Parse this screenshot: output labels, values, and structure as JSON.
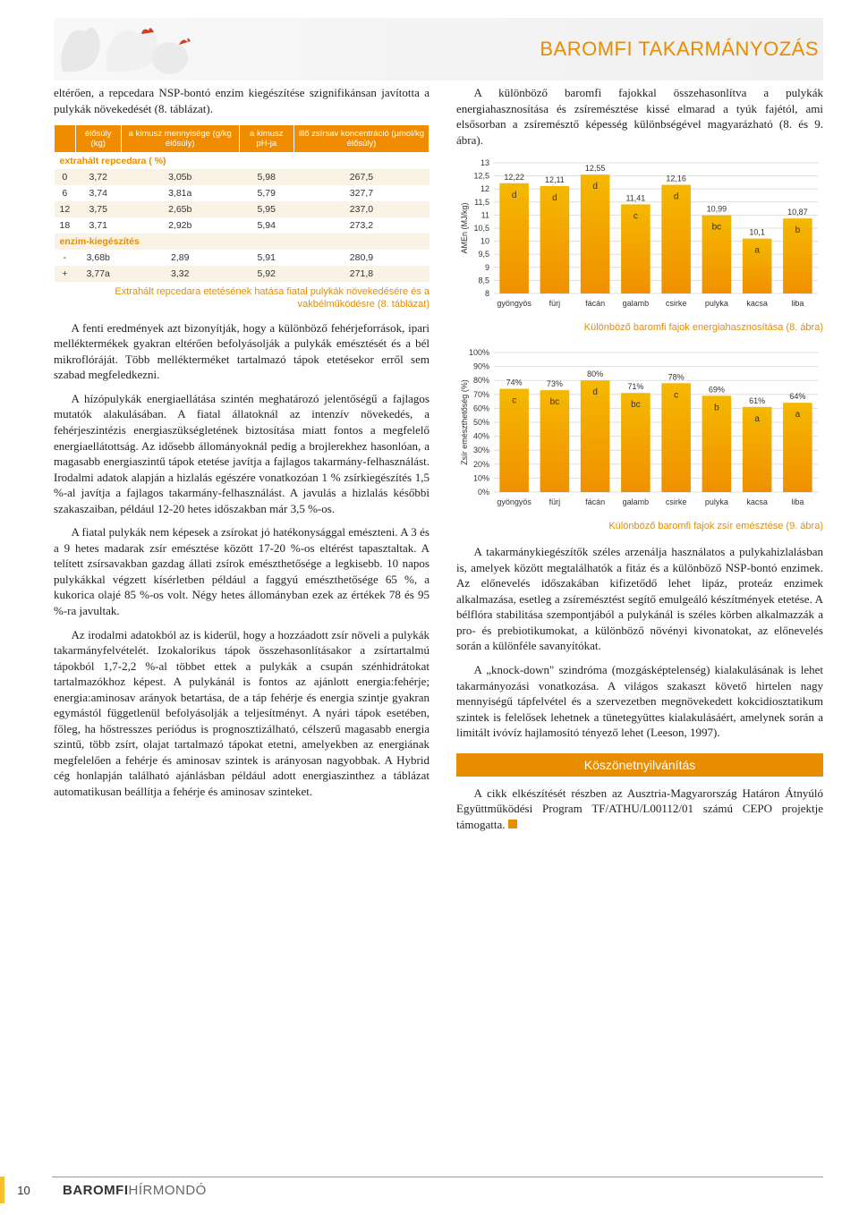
{
  "header": {
    "title": "BAROMFI TAKARMÁNYOZÁS"
  },
  "left": {
    "intro": "eltérően, a repcedara NSP-bontó enzim kiegészítése szignifikánsan javította a pulykák növekedését (8. táblázat).",
    "table": {
      "headers": [
        "",
        "élősúly (kg)",
        "a kimusz mennyisége (g/kg élősúly)",
        "a kimusz pH-ja",
        "illő zsírsav koncentráció (µmol/kg élősúly)"
      ],
      "section1": "extrahált repcedara ( %)",
      "rows1": [
        [
          "0",
          "3,72",
          "3,05b",
          "5,98",
          "267,5"
        ],
        [
          "6",
          "3,74",
          "3,81a",
          "5,79",
          "327,7"
        ],
        [
          "12",
          "3,75",
          "2,65b",
          "5,95",
          "237,0"
        ],
        [
          "18",
          "3,71",
          "2,92b",
          "5,94",
          "273,2"
        ]
      ],
      "section2": "enzim-kiegészítés",
      "rows2": [
        [
          "-",
          "3,68b",
          "2,89",
          "5,91",
          "280,9"
        ],
        [
          "+",
          "3,77a",
          "3,32",
          "5,92",
          "271,8"
        ]
      ],
      "caption": "Extrahált repcedara etetésének hatása fiatal pulykák növekedésére és a vakbélműködésre (8. táblázat)"
    },
    "para1": "A fenti eredmények azt bizonyítják, hogy a különböző fehérjeforrások, ipari melléktermékek gyakran eltérően befolyásolják a pulykák emésztését és a bél mikroflóráját. Több mellékterméket tartalmazó tápok etetésekor erről sem szabad megfeledkezni.",
    "para2": "A hízópulykák energiaellátása szintén meghatározó jelentőségű a fajlagos mutatók alakulásában. A fiatal állatoknál az intenzív növekedés, a fehérjeszintézis energiaszükségletének biztosítása miatt fontos a megfelelő energiaellátottság. Az idősebb állományoknál pedig a brojlerekhez hasonlóan, a magasabb energiaszintű tápok etetése javítja a fajlagos takarmány-felhasználást. Irodalmi adatok alapján a hizlalás egészére vonatkozóan 1 % zsírkiegészítés 1,5 %-al javítja a fajlagos takarmány-felhasználást. A javulás a hizlalás későbbi szakaszaiban, például 12-20 hetes időszakban már 3,5 %-os.",
    "para3": "A fiatal pulykák nem képesek a zsírokat jó hatékonysággal emészteni. A 3 és a 9 hetes madarak zsír emésztése között 17-20 %-os eltérést tapasztaltak. A telített zsírsavakban gazdag állati zsírok emészthetősége a legkisebb. 10 napos pulykákkal végzett kísérletben például a faggyú emészthetősége 65 %, a kukorica olajé 85 %-os volt. Négy hetes állományban ezek az értékek 78 és 95 %-ra javultak.",
    "para4": "Az irodalmi adatokból az is kiderül, hogy a hozzáadott zsír növeli a pulykák takarmányfelvételét. Izokalorikus tápok összehasonlításakor a zsírtartalmú tápokból 1,7-2,2 %-al többet ettek a pulykák a csupán szénhidrátokat tartalmazókhoz képest. A pulykánál is fontos az ajánlott energia:fehérje; energia:aminosav arányok betartása, de a táp fehérje és energia szintje gyakran egymástól függetlenül befolyásolják a teljesítményt. A nyári tápok esetében, főleg, ha hőstresszes periódus is prognosztizálható, célszerű magasabb energia szintű, több zsírt, olajat tartalmazó tápokat etetni, amelyekben az energiának megfelelően a fehérje és aminosav szintek is arányosan nagyobbak. A Hybrid cég honlapján található ajánlásban például adott energiaszinthez a táblázat automatikusan beállítja a fehérje és aminosav szinteket."
  },
  "right": {
    "intro": "A különböző baromfi fajokkal összehasonlítva a pulykák energiahasznosítása és zsíremésztése kissé elmarad a tyúk fajétól, ami elsősorban a zsíremésztő képesség különbségével magyarázható (8. és 9. ábra).",
    "chart1": {
      "categories": [
        "gyöngyös",
        "fürj",
        "fácán",
        "galamb",
        "csirke",
        "pulyka",
        "kacsa",
        "liba"
      ],
      "values": [
        12.22,
        12.11,
        12.55,
        11.41,
        12.16,
        10.99,
        10.1,
        10.87
      ],
      "letters": [
        "d",
        "d",
        "d",
        "c",
        "d",
        "bc",
        "a",
        "b"
      ],
      "ylabel": "AMEn (MJ/kg)",
      "ymin": 8,
      "ymax": 13,
      "ystep": 0.5,
      "caption": "Különböző baromfi fajok energiahasznosítása (8. ábra)"
    },
    "chart2": {
      "categories": [
        "gyöngyös",
        "fürj",
        "fácán",
        "galamb",
        "csirke",
        "pulyka",
        "kacsa",
        "liba"
      ],
      "values": [
        74,
        73,
        80,
        71,
        78,
        69,
        61,
        64
      ],
      "letters": [
        "c",
        "bc",
        "d",
        "bc",
        "c",
        "b",
        "a",
        "a"
      ],
      "ylabel": "Zsír emészthetőség (%)",
      "ymin": 0,
      "ymax": 100,
      "ystep": 10,
      "caption": "Különböző baromfi fajok zsír emésztése (9. ábra)"
    },
    "para1": "A takarmánykiegészítők széles arzenálja használatos a pulykahizlalásban is, amelyek között megtalálhatók a fitáz és a különböző NSP-bontó enzimek. Az előnevelés időszakában kifizetődő lehet lipáz, proteáz enzimek alkalmazása, esetleg a zsíremésztést segítő emulgeáló készítmények etetése. A bélflóra stabilitása szempontjából a pulykánál is széles körben alkalmazzák a pro- és prebiotikumokat, a különböző növényi kivonatokat, az előnevelés során a különféle savanyítókat.",
    "para2": "A „knock-down\" szindróma (mozgásképtelenség) kialakulásának is lehet takarmányozási vonatkozása. A világos szakaszt követő hirtelen nagy mennyiségű tápfelvétel és a szervezetben megnövekedett kokcidiosztatikum szintek is felelősek lehetnek a tünetegyüttes kialakulásáért, amelynek során a limitált ivóvíz hajlamosító tényező lehet (Leeson, 1997).",
    "ack_title": "Köszönetnyilvánítás",
    "ack": "A cikk elkészítését részben az Ausztria-Magyarország Határon Átnyúló Együttműködési Program TF/ATHU/L00112/01 számú CEPO projektje támogatta."
  },
  "footer": {
    "page": "10",
    "bold": "BAROMFI",
    "light": "HÍRMONDÓ"
  },
  "colors": {
    "accent": "#e88c00",
    "bar_top": "#f5b800",
    "bar_bottom": "#f09000",
    "grid": "#dddddd"
  }
}
